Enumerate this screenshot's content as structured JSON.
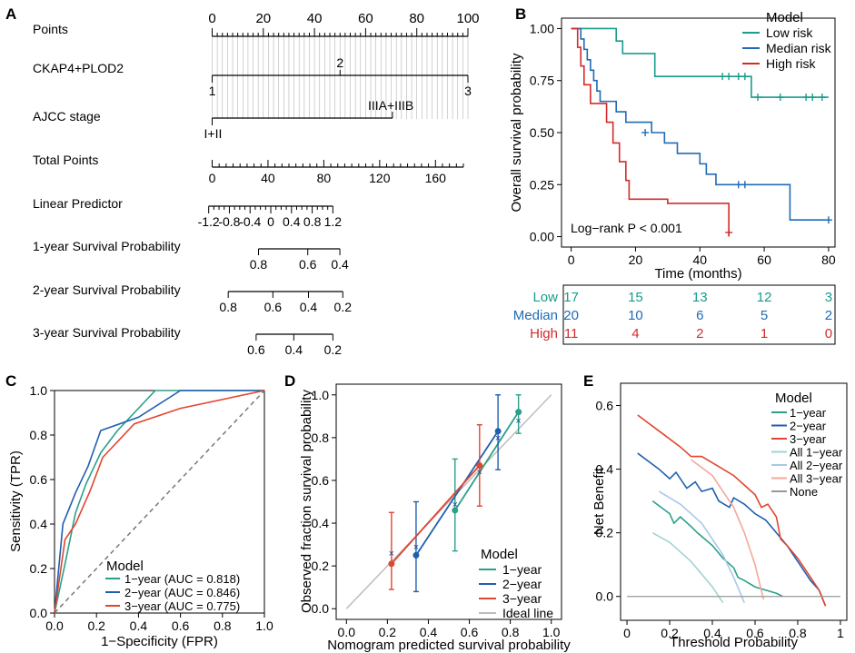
{
  "panel_labels": {
    "a": "A",
    "b": "B",
    "c": "C",
    "d": "D",
    "e": "E"
  },
  "colors": {
    "low": "#1a9b8c",
    "median": "#1f6bb5",
    "high": "#d42a2a",
    "one_year": "#2aa08a",
    "two_year": "#1f5fb0",
    "three_year": "#e0462f",
    "ideal": "#bdbdbd",
    "all1": "#9fd6d0",
    "all2": "#a9c8e8",
    "all3": "#f3a89d",
    "none": "#999999",
    "text": "#000000",
    "grid": "#b5b5b5"
  },
  "chart_data": [
    {
      "panel": "A",
      "type": "nomogram",
      "rows": [
        {
          "label": "Points",
          "kind": "axis",
          "range": [
            0,
            100
          ],
          "ticks": [
            0,
            20,
            40,
            60,
            80,
            100
          ],
          "minor_step": 2
        },
        {
          "label": "CKAP4+PLOD2",
          "kind": "variable",
          "points_range": [
            0,
            100
          ],
          "levels": [
            "1",
            "2",
            "3"
          ]
        },
        {
          "label": "AJCC stage",
          "kind": "variable",
          "points_range": [
            0,
            70.5
          ],
          "levels": [
            "I+II",
            "IIIA+IIIB"
          ]
        },
        {
          "label": "Total Points",
          "kind": "axis",
          "range": [
            0,
            180
          ],
          "ticks": [
            0,
            40,
            80,
            120,
            160
          ],
          "minor_step": 5
        },
        {
          "label": "Linear Predictor",
          "kind": "scale",
          "ticks": [
            "-1.2",
            "-0.8",
            "-0.4",
            "0",
            "0.4",
            "0.8",
            "1.2"
          ],
          "total_points": [
            -2.5,
            12.3,
            27.2,
            42,
            56.8,
            71.7,
            86.5
          ],
          "minor_step": 0.1
        },
        {
          "label": "1-year Survival Probability",
          "kind": "scale",
          "ticks": [
            "0.8",
            "0.6",
            "0.4"
          ],
          "total_points": [
            33.2,
            68.5,
            91.5
          ]
        },
        {
          "label": "2-year Survival Probability",
          "kind": "scale",
          "ticks": [
            "0.8",
            "0.6",
            "0.4",
            "0.2"
          ],
          "total_points": [
            11.5,
            43.5,
            69,
            93.6
          ]
        },
        {
          "label": "3-year Survival Probability",
          "kind": "scale",
          "ticks": [
            "0.6",
            "0.4",
            "0.2"
          ],
          "total_points": [
            31.5,
            58.5,
            86.5
          ]
        }
      ]
    },
    {
      "panel": "B",
      "type": "line",
      "subtype": "kaplan-meier",
      "xlabel": "Time (months)",
      "ylabel": "Overall survival probability",
      "xlim": [
        0,
        80
      ],
      "ylim": [
        0,
        1
      ],
      "xticks": [
        "0",
        "20",
        "40",
        "60",
        "80"
      ],
      "yticks": [
        "0.00",
        "0.25",
        "0.50",
        "0.75",
        "1.00"
      ],
      "legend_title": "Model",
      "annotation": "Log−rank P < 0.001",
      "series": [
        {
          "name": "Low risk",
          "color_key": "low",
          "steps": [
            [
              0,
              1.0
            ],
            [
              14,
              0.94
            ],
            [
              16,
              0.88
            ],
            [
              26,
              0.77
            ],
            [
              56,
              0.67
            ],
            [
              80,
              0.67
            ]
          ],
          "censors": [
            [
              47,
              0.77
            ],
            [
              49,
              0.77
            ],
            [
              52,
              0.77
            ],
            [
              54,
              0.77
            ],
            [
              58,
              0.67
            ],
            [
              65,
              0.67
            ],
            [
              73,
              0.67
            ],
            [
              75,
              0.67
            ],
            [
              78,
              0.67
            ]
          ]
        },
        {
          "name": "Median risk",
          "color_key": "median",
          "steps": [
            [
              0,
              1.0
            ],
            [
              3,
              0.95
            ],
            [
              4,
              0.9
            ],
            [
              5,
              0.85
            ],
            [
              6,
              0.8
            ],
            [
              7,
              0.75
            ],
            [
              8,
              0.7
            ],
            [
              9,
              0.65
            ],
            [
              14,
              0.6
            ],
            [
              17,
              0.55
            ],
            [
              25,
              0.5
            ],
            [
              29,
              0.45
            ],
            [
              33,
              0.4
            ],
            [
              40,
              0.35
            ],
            [
              42,
              0.3
            ],
            [
              45,
              0.25
            ],
            [
              68,
              0.08
            ],
            [
              80,
              0.08
            ]
          ],
          "censors": [
            [
              23,
              0.5
            ],
            [
              52,
              0.25
            ],
            [
              54,
              0.25
            ],
            [
              80,
              0.08
            ]
          ]
        },
        {
          "name": "High risk",
          "color_key": "high",
          "steps": [
            [
              0,
              1.0
            ],
            [
              2,
              0.91
            ],
            [
              3,
              0.82
            ],
            [
              4,
              0.73
            ],
            [
              6,
              0.64
            ],
            [
              11,
              0.55
            ],
            [
              13,
              0.45
            ],
            [
              15,
              0.36
            ],
            [
              17,
              0.27
            ],
            [
              18,
              0.18
            ],
            [
              30,
              0.16
            ],
            [
              49,
              0.0
            ]
          ],
          "censors": [
            [
              49,
              0.02
            ]
          ]
        }
      ]
    },
    {
      "panel": "B-table",
      "type": "table",
      "rows": [
        "Low",
        "Median",
        "High"
      ],
      "time_points": [
        0,
        20,
        40,
        60,
        80
      ],
      "values": [
        [
          17,
          15,
          13,
          12,
          3
        ],
        [
          20,
          10,
          6,
          5,
          2
        ],
        [
          11,
          4,
          2,
          1,
          0
        ]
      ]
    },
    {
      "panel": "C",
      "type": "line",
      "subtype": "roc",
      "xlabel": "1−Specificity (FPR)",
      "ylabel": "Sensitivity (TPR)",
      "xlim": [
        0,
        1
      ],
      "ylim": [
        0,
        1
      ],
      "xticks": [
        "0.0",
        "0.2",
        "0.4",
        "0.6",
        "0.8",
        "1.0"
      ],
      "yticks": [
        "0.0",
        "0.2",
        "0.4",
        "0.6",
        "0.8",
        "1.0"
      ],
      "legend_title": "Model",
      "series": [
        {
          "name": "1−year (AUC = 0.818)",
          "color_key": "one_year",
          "x": [
            0,
            0.05,
            0.1,
            0.15,
            0.22,
            0.3,
            0.48,
            0.62,
            1.0
          ],
          "y": [
            0,
            0.22,
            0.45,
            0.58,
            0.72,
            0.82,
            1.0,
            1.0,
            1.0
          ]
        },
        {
          "name": "2−year (AUC = 0.846)",
          "color_key": "two_year",
          "x": [
            0,
            0.04,
            0.1,
            0.16,
            0.22,
            0.4,
            0.6,
            1.0
          ],
          "y": [
            0,
            0.4,
            0.54,
            0.66,
            0.82,
            0.88,
            1.0,
            1.0
          ]
        },
        {
          "name": "3−year (AUC = 0.775)",
          "color_key": "three_year",
          "x": [
            0,
            0.05,
            0.1,
            0.17,
            0.23,
            0.38,
            0.6,
            1.0
          ],
          "y": [
            0,
            0.33,
            0.4,
            0.55,
            0.7,
            0.85,
            0.92,
            1.0
          ]
        }
      ],
      "reference_line": "diagonal"
    },
    {
      "panel": "D",
      "type": "line",
      "subtype": "calibration",
      "xlabel": "Nomogram predicted survival probability",
      "ylabel": "Observed fraction survival probability",
      "xlim": [
        0,
        1
      ],
      "ylim": [
        0,
        1
      ],
      "xticks": [
        "0.0",
        "0.2",
        "0.4",
        "0.6",
        "0.8",
        "1.0"
      ],
      "yticks": [
        "0.0",
        "0.2",
        "0.4",
        "0.6",
        "0.8",
        "1.0"
      ],
      "legend_title": "Model",
      "series": [
        {
          "name": "1−year",
          "color_key": "one_year",
          "x": [
            0.53,
            0.84
          ],
          "y": [
            0.46,
            0.92
          ],
          "err_low": [
            0.27,
            0.82
          ],
          "err_high": [
            0.7,
            1.0
          ],
          "cross": [
            [
              0.53,
              0.49
            ],
            [
              0.84,
              0.88
            ]
          ]
        },
        {
          "name": "2−year",
          "color_key": "two_year",
          "x": [
            0.34,
            0.74
          ],
          "y": [
            0.25,
            0.83
          ],
          "err_low": [
            0.08,
            0.65
          ],
          "err_high": [
            0.5,
            1.0
          ],
          "cross": [
            [
              0.34,
              0.29
            ],
            [
              0.74,
              0.8
            ]
          ]
        },
        {
          "name": "3−year",
          "color_key": "three_year",
          "x": [
            0.22,
            0.65
          ],
          "y": [
            0.21,
            0.67
          ],
          "err_low": [
            0.09,
            0.48
          ],
          "err_high": [
            0.45,
            0.86
          ],
          "cross": [
            [
              0.22,
              0.26
            ],
            [
              0.65,
              0.64
            ]
          ]
        },
        {
          "name": "Ideal line",
          "color_key": "ideal",
          "x": [
            0,
            1
          ],
          "y": [
            0,
            1
          ]
        }
      ]
    },
    {
      "panel": "E",
      "type": "line",
      "subtype": "decision-curve",
      "xlabel": "Threshold Probability",
      "ylabel": "Net Benefit",
      "xlim": [
        0,
        1
      ],
      "ylim": [
        -0.05,
        0.65
      ],
      "xticks": [
        "0",
        "0.2",
        "0.4",
        "0.6",
        "0.8",
        "1"
      ],
      "yticks": [
        "0.0",
        "0.2",
        "0.4",
        "0.6"
      ],
      "legend_title": "Model",
      "series": [
        {
          "name": "1−year",
          "color_key": "one_year",
          "x": [
            0.12,
            0.2,
            0.22,
            0.25,
            0.3,
            0.33,
            0.4,
            0.45,
            0.5,
            0.52,
            0.55,
            0.6,
            0.7,
            0.73
          ],
          "y": [
            0.3,
            0.26,
            0.23,
            0.25,
            0.22,
            0.2,
            0.16,
            0.12,
            0.09,
            0.06,
            0.05,
            0.03,
            0.01,
            0.0
          ]
        },
        {
          "name": "2−year",
          "color_key": "two_year",
          "x": [
            0.05,
            0.15,
            0.2,
            0.23,
            0.28,
            0.32,
            0.35,
            0.4,
            0.43,
            0.48,
            0.5,
            0.55,
            0.6,
            0.65,
            0.7,
            0.75,
            0.8,
            0.86,
            0.9,
            0.93
          ],
          "y": [
            0.45,
            0.4,
            0.37,
            0.39,
            0.34,
            0.36,
            0.33,
            0.34,
            0.3,
            0.28,
            0.31,
            0.29,
            0.26,
            0.24,
            0.2,
            0.16,
            0.11,
            0.05,
            0.02,
            -0.03
          ]
        },
        {
          "name": "3−year",
          "color_key": "three_year",
          "x": [
            0.05,
            0.15,
            0.25,
            0.3,
            0.35,
            0.4,
            0.45,
            0.5,
            0.55,
            0.6,
            0.63,
            0.66,
            0.7,
            0.72,
            0.75,
            0.8,
            0.85,
            0.9,
            0.93
          ],
          "y": [
            0.57,
            0.52,
            0.47,
            0.44,
            0.44,
            0.42,
            0.4,
            0.38,
            0.35,
            0.32,
            0.28,
            0.29,
            0.25,
            0.18,
            0.16,
            0.12,
            0.07,
            0.02,
            -0.03
          ]
        },
        {
          "name": "All 1−year",
          "color_key": "all1",
          "x": [
            0.12,
            0.2,
            0.3,
            0.35,
            0.4,
            0.45
          ],
          "y": [
            0.2,
            0.17,
            0.11,
            0.07,
            0.03,
            -0.02
          ]
        },
        {
          "name": "All 2−year",
          "color_key": "all2",
          "x": [
            0.15,
            0.25,
            0.35,
            0.45,
            0.5,
            0.55
          ],
          "y": [
            0.33,
            0.29,
            0.23,
            0.13,
            0.06,
            -0.02
          ]
        },
        {
          "name": "All 3−year",
          "color_key": "all3",
          "x": [
            0.3,
            0.4,
            0.5,
            0.55,
            0.6,
            0.64
          ],
          "y": [
            0.43,
            0.38,
            0.28,
            0.2,
            0.1,
            -0.01
          ]
        },
        {
          "name": "None",
          "color_key": "none",
          "x": [
            0,
            1
          ],
          "y": [
            0,
            0
          ]
        }
      ]
    }
  ]
}
